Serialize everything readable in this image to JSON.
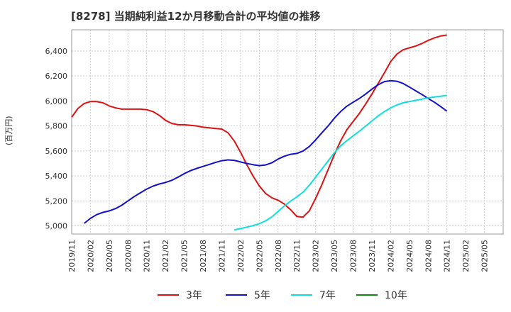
{
  "title": "[8278]  当期純利益12か月移動合計の平均値の推移",
  "chart_data": {
    "type": "line",
    "title": "[8278]  当期純利益12か月移動合計の平均値の推移",
    "xlabel": "",
    "ylabel": "(百万円)",
    "ylim": [
      4935,
      6570
    ],
    "yticks": [
      5000,
      5200,
      5400,
      5600,
      5800,
      6000,
      6200,
      6400
    ],
    "ytick_labels": [
      "5,000",
      "5,200",
      "5,400",
      "5,600",
      "5,800",
      "6,000",
      "6,200",
      "6,400"
    ],
    "xticks": [
      "2019/11",
      "2020/02",
      "2020/05",
      "2020/08",
      "2020/11",
      "2021/02",
      "2021/05",
      "2021/08",
      "2021/11",
      "2022/02",
      "2022/05",
      "2022/08",
      "2022/11",
      "2023/02",
      "2023/05",
      "2023/08",
      "2023/11",
      "2024/02",
      "2024/05",
      "2024/08",
      "2024/11",
      "2025/02",
      "2025/05"
    ],
    "grid": true,
    "legend_position": "bottom",
    "series": [
      {
        "name": "3年",
        "color": "#dd1111",
        "points": [
          [
            "2019/11",
            5870
          ],
          [
            "2019/12",
            5940
          ],
          [
            "2020/01",
            5980
          ],
          [
            "2020/02",
            5995
          ],
          [
            "2020/03",
            5995
          ],
          [
            "2020/04",
            5985
          ],
          [
            "2020/05",
            5960
          ],
          [
            "2020/06",
            5945
          ],
          [
            "2020/07",
            5935
          ],
          [
            "2020/08",
            5935
          ],
          [
            "2020/09",
            5935
          ],
          [
            "2020/10",
            5935
          ],
          [
            "2020/11",
            5930
          ],
          [
            "2020/12",
            5915
          ],
          [
            "2021/01",
            5885
          ],
          [
            "2021/02",
            5845
          ],
          [
            "2021/03",
            5820
          ],
          [
            "2021/04",
            5810
          ],
          [
            "2021/05",
            5810
          ],
          [
            "2021/06",
            5805
          ],
          [
            "2021/07",
            5800
          ],
          [
            "2021/08",
            5790
          ],
          [
            "2021/09",
            5785
          ],
          [
            "2021/10",
            5780
          ],
          [
            "2021/11",
            5775
          ],
          [
            "2021/12",
            5745
          ],
          [
            "2022/01",
            5680
          ],
          [
            "2022/02",
            5590
          ],
          [
            "2022/03",
            5490
          ],
          [
            "2022/04",
            5400
          ],
          [
            "2022/05",
            5320
          ],
          [
            "2022/06",
            5260
          ],
          [
            "2022/07",
            5225
          ],
          [
            "2022/08",
            5205
          ],
          [
            "2022/09",
            5175
          ],
          [
            "2022/10",
            5130
          ],
          [
            "2022/11",
            5075
          ],
          [
            "2022/12",
            5070
          ],
          [
            "2023/01",
            5120
          ],
          [
            "2023/02",
            5220
          ],
          [
            "2023/03",
            5330
          ],
          [
            "2023/04",
            5450
          ],
          [
            "2023/05",
            5570
          ],
          [
            "2023/06",
            5680
          ],
          [
            "2023/07",
            5770
          ],
          [
            "2023/08",
            5835
          ],
          [
            "2023/09",
            5900
          ],
          [
            "2023/10",
            5975
          ],
          [
            "2023/11",
            6055
          ],
          [
            "2023/12",
            6140
          ],
          [
            "2024/01",
            6225
          ],
          [
            "2024/02",
            6315
          ],
          [
            "2024/03",
            6375
          ],
          [
            "2024/04",
            6410
          ],
          [
            "2024/05",
            6425
          ],
          [
            "2024/06",
            6440
          ],
          [
            "2024/07",
            6460
          ],
          [
            "2024/08",
            6485
          ],
          [
            "2024/09",
            6505
          ],
          [
            "2024/10",
            6520
          ],
          [
            "2024/11",
            6528
          ]
        ]
      },
      {
        "name": "5年",
        "color": "#1111cc",
        "points": [
          [
            "2020/01",
            5020
          ],
          [
            "2020/02",
            5060
          ],
          [
            "2020/03",
            5090
          ],
          [
            "2020/04",
            5108
          ],
          [
            "2020/05",
            5120
          ],
          [
            "2020/06",
            5138
          ],
          [
            "2020/07",
            5165
          ],
          [
            "2020/08",
            5200
          ],
          [
            "2020/09",
            5235
          ],
          [
            "2020/10",
            5265
          ],
          [
            "2020/11",
            5295
          ],
          [
            "2020/12",
            5318
          ],
          [
            "2021/01",
            5335
          ],
          [
            "2021/02",
            5348
          ],
          [
            "2021/03",
            5365
          ],
          [
            "2021/04",
            5390
          ],
          [
            "2021/05",
            5418
          ],
          [
            "2021/06",
            5442
          ],
          [
            "2021/07",
            5460
          ],
          [
            "2021/08",
            5476
          ],
          [
            "2021/09",
            5492
          ],
          [
            "2021/10",
            5508
          ],
          [
            "2021/11",
            5522
          ],
          [
            "2021/12",
            5528
          ],
          [
            "2022/01",
            5525
          ],
          [
            "2022/02",
            5512
          ],
          [
            "2022/03",
            5500
          ],
          [
            "2022/04",
            5490
          ],
          [
            "2022/05",
            5482
          ],
          [
            "2022/06",
            5488
          ],
          [
            "2022/07",
            5505
          ],
          [
            "2022/08",
            5535
          ],
          [
            "2022/09",
            5558
          ],
          [
            "2022/10",
            5573
          ],
          [
            "2022/11",
            5580
          ],
          [
            "2022/12",
            5600
          ],
          [
            "2023/01",
            5635
          ],
          [
            "2023/02",
            5688
          ],
          [
            "2023/03",
            5745
          ],
          [
            "2023/04",
            5800
          ],
          [
            "2023/05",
            5862
          ],
          [
            "2023/06",
            5915
          ],
          [
            "2023/07",
            5958
          ],
          [
            "2023/08",
            5990
          ],
          [
            "2023/09",
            6020
          ],
          [
            "2023/10",
            6055
          ],
          [
            "2023/11",
            6095
          ],
          [
            "2023/12",
            6130
          ],
          [
            "2024/01",
            6155
          ],
          [
            "2024/02",
            6163
          ],
          [
            "2024/03",
            6158
          ],
          [
            "2024/04",
            6140
          ],
          [
            "2024/05",
            6112
          ],
          [
            "2024/06",
            6082
          ],
          [
            "2024/07",
            6052
          ],
          [
            "2024/08",
            6020
          ],
          [
            "2024/09",
            5990
          ],
          [
            "2024/10",
            5955
          ],
          [
            "2024/11",
            5918
          ]
        ]
      },
      {
        "name": "7年",
        "color": "#11dddd",
        "points": [
          [
            "2022/01",
            4968
          ],
          [
            "2022/02",
            4978
          ],
          [
            "2022/03",
            4990
          ],
          [
            "2022/04",
            5002
          ],
          [
            "2022/05",
            5018
          ],
          [
            "2022/06",
            5040
          ],
          [
            "2022/07",
            5072
          ],
          [
            "2022/08",
            5115
          ],
          [
            "2022/09",
            5160
          ],
          [
            "2022/10",
            5198
          ],
          [
            "2022/11",
            5232
          ],
          [
            "2022/12",
            5270
          ],
          [
            "2023/01",
            5325
          ],
          [
            "2023/02",
            5390
          ],
          [
            "2023/03",
            5455
          ],
          [
            "2023/04",
            5520
          ],
          [
            "2023/05",
            5585
          ],
          [
            "2023/06",
            5640
          ],
          [
            "2023/07",
            5682
          ],
          [
            "2023/08",
            5720
          ],
          [
            "2023/09",
            5758
          ],
          [
            "2023/10",
            5798
          ],
          [
            "2023/11",
            5840
          ],
          [
            "2023/12",
            5880
          ],
          [
            "2024/01",
            5915
          ],
          [
            "2024/02",
            5945
          ],
          [
            "2024/03",
            5968
          ],
          [
            "2024/04",
            5985
          ],
          [
            "2024/05",
            5995
          ],
          [
            "2024/06",
            6005
          ],
          [
            "2024/07",
            6015
          ],
          [
            "2024/08",
            6025
          ],
          [
            "2024/09",
            6032
          ],
          [
            "2024/10",
            6038
          ],
          [
            "2024/11",
            6045
          ]
        ]
      },
      {
        "name": "10年",
        "color": "#118811",
        "points": []
      }
    ]
  }
}
